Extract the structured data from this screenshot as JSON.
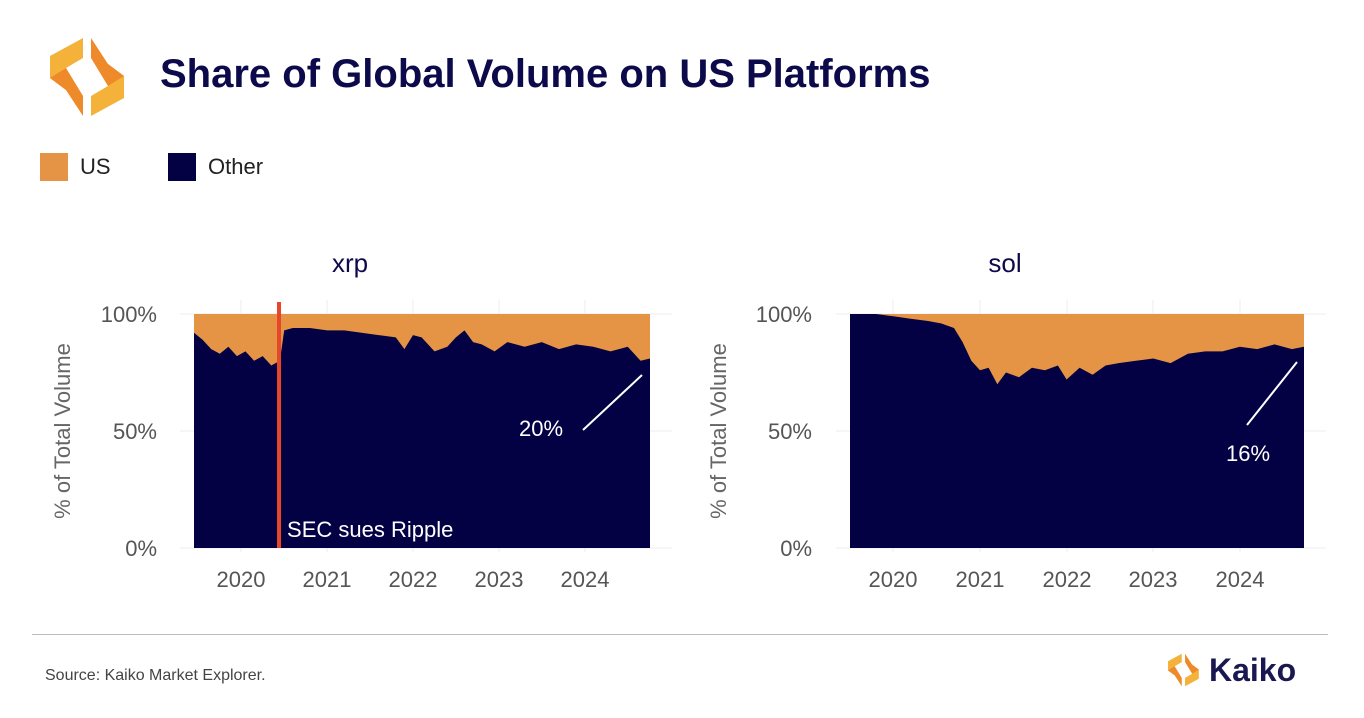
{
  "header": {
    "title": "Share of Global Volume on US Platforms"
  },
  "legend": [
    {
      "label": "US",
      "color": "#e59445"
    },
    {
      "label": "Other",
      "color": "#030043"
    }
  ],
  "footer": {
    "source": "Source: Kaiko Market Explorer.",
    "brand": "Kaiko"
  },
  "chart_data": [
    {
      "type": "area",
      "title": "xrp",
      "ylabel": "% of Total Volume",
      "ylim": [
        0,
        100
      ],
      "xlim": [
        2019.45,
        2024.76
      ],
      "yticks": [
        "0%",
        "50%",
        "100%"
      ],
      "xticks": [
        "2020",
        "2021",
        "2022",
        "2023",
        "2024"
      ],
      "series_note": "Other share (%); US = 100 - Other",
      "x": [
        2019.45,
        2019.55,
        2019.65,
        2019.75,
        2019.85,
        2019.95,
        2020.05,
        2020.15,
        2020.25,
        2020.35,
        2020.45,
        2020.5,
        2020.6,
        2020.8,
        2021.0,
        2021.2,
        2021.4,
        2021.6,
        2021.8,
        2021.9,
        2022.0,
        2022.1,
        2022.25,
        2022.4,
        2022.5,
        2022.6,
        2022.7,
        2022.8,
        2022.95,
        2023.1,
        2023.3,
        2023.5,
        2023.7,
        2023.9,
        2024.1,
        2024.3,
        2024.5,
        2024.65,
        2024.76
      ],
      "other": [
        92,
        89,
        85,
        83,
        86,
        82,
        84,
        80,
        82,
        78,
        80,
        93,
        94,
        94,
        93,
        93,
        92,
        91,
        90,
        85,
        91,
        90,
        84,
        86,
        90,
        93,
        88,
        87,
        84,
        88,
        86,
        88,
        85,
        87,
        86,
        84,
        86,
        80,
        81
      ],
      "event": {
        "x": 2020.44,
        "label": "SEC sues Ripple",
        "color": "#e8462a"
      },
      "annotation": "20%"
    },
    {
      "type": "area",
      "title": "sol",
      "ylabel": "% of Total Volume",
      "ylim": [
        0,
        100
      ],
      "xlim": [
        2019.5,
        2024.74
      ],
      "yticks": [
        "0%",
        "50%",
        "100%"
      ],
      "xticks": [
        "2020",
        "2021",
        "2022",
        "2023",
        "2024"
      ],
      "series_note": "Other share (%); US = 100 - Other",
      "x": [
        2019.5,
        2019.8,
        2020.0,
        2020.2,
        2020.4,
        2020.55,
        2020.7,
        2020.8,
        2020.9,
        2021.0,
        2021.1,
        2021.2,
        2021.3,
        2021.45,
        2021.6,
        2021.75,
        2021.9,
        2022.0,
        2022.15,
        2022.3,
        2022.45,
        2022.6,
        2022.8,
        2023.0,
        2023.2,
        2023.4,
        2023.6,
        2023.8,
        2024.0,
        2024.2,
        2024.4,
        2024.6,
        2024.74
      ],
      "other": [
        100,
        100,
        99,
        98,
        97,
        96,
        94,
        88,
        80,
        76,
        77,
        70,
        75,
        73,
        77,
        76,
        78,
        72,
        77,
        74,
        78,
        79,
        80,
        81,
        79,
        83,
        84,
        84,
        86,
        85,
        87,
        85,
        86
      ],
      "annotation": "16%"
    }
  ]
}
